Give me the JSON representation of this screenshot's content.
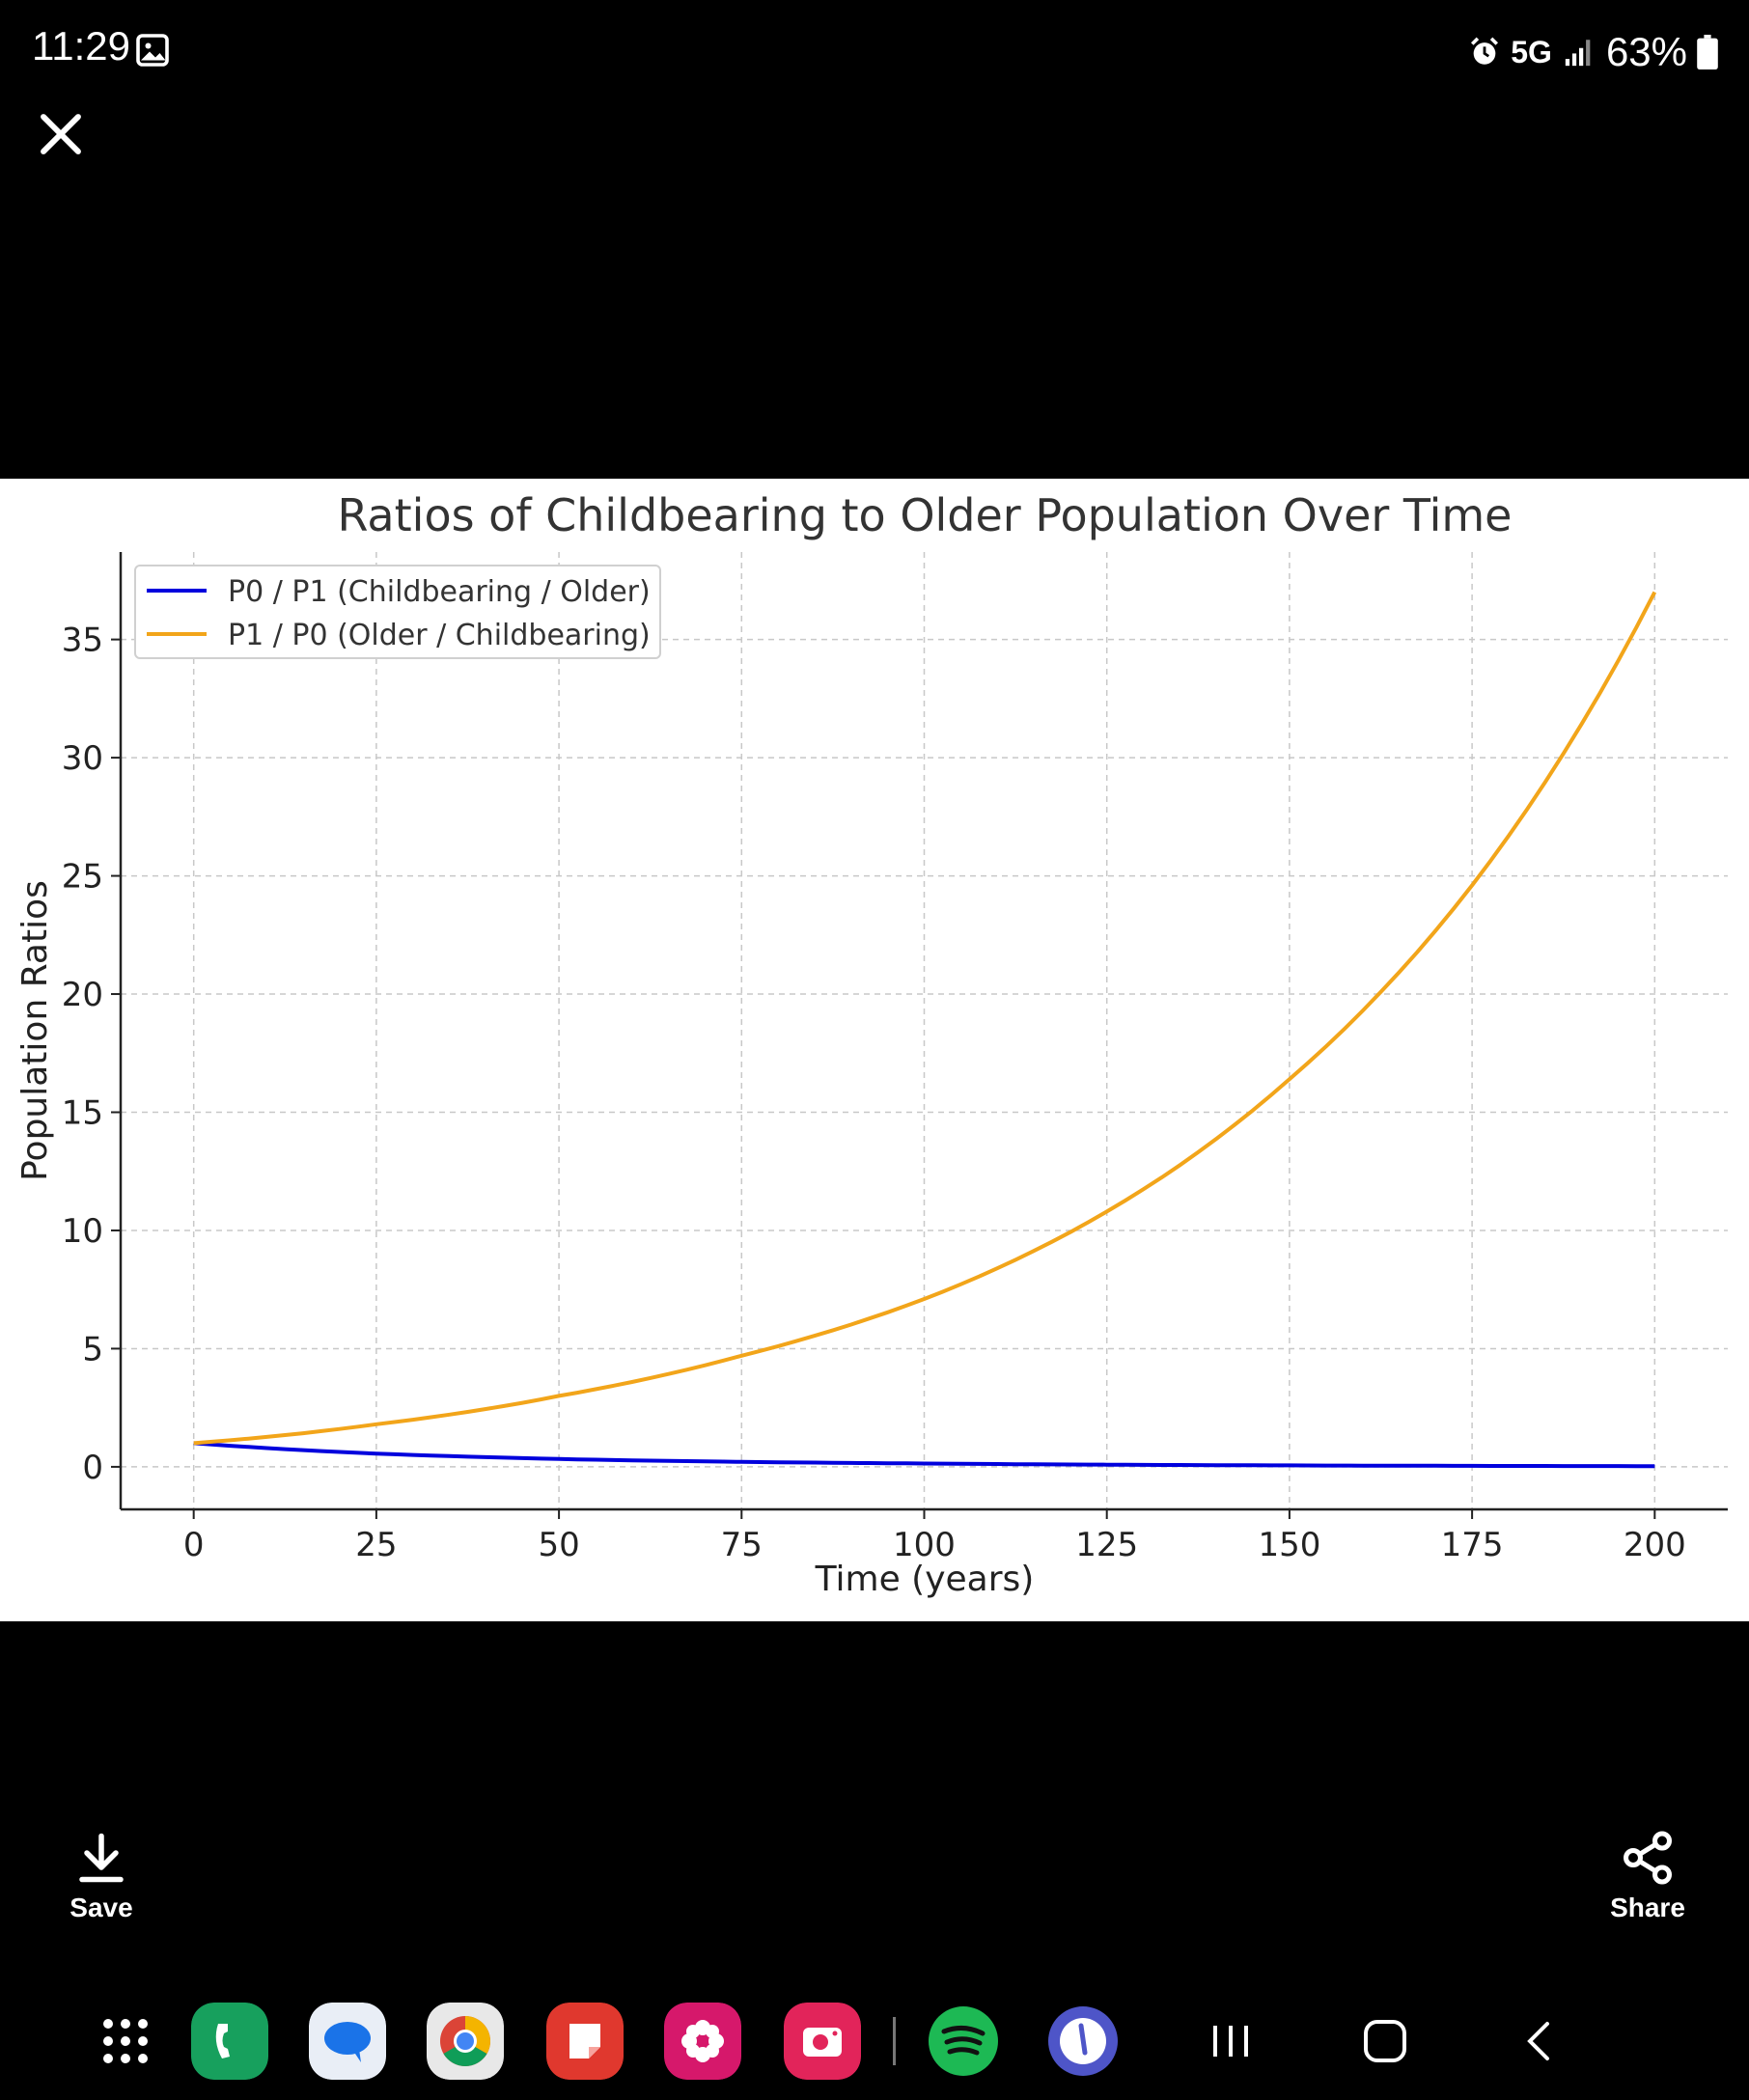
{
  "status_bar": {
    "time": "11:29",
    "network": "5G",
    "battery_text": "63%"
  },
  "icons": {
    "status_image": "image-icon",
    "alarm": "alarm-icon",
    "signal": "signal-bars-icon",
    "battery": "battery-icon",
    "close": "close-icon",
    "save": "download-icon",
    "share": "share-icon"
  },
  "actions": {
    "save_label": "Save",
    "share_label": "Share"
  },
  "dock": {
    "apps": [
      "app-drawer",
      "phone",
      "messages",
      "chrome",
      "notes",
      "bixby-flower",
      "camera",
      "spotify",
      "clock"
    ],
    "nav": [
      "recents",
      "home",
      "back"
    ]
  },
  "colors": {
    "series_blue": "#0000dd",
    "series_orange": "#f2a51a",
    "background": "#000000"
  },
  "chart_data": {
    "type": "line",
    "title": "Ratios of Childbearing to Older Population Over Time",
    "xlabel": "Time (years)",
    "ylabel": "Population Ratios",
    "xlim": [
      -10,
      210
    ],
    "ylim": [
      -1.8,
      38.7
    ],
    "xticks": [
      0,
      25,
      50,
      75,
      100,
      125,
      150,
      175,
      200
    ],
    "yticks": [
      0,
      5,
      10,
      15,
      20,
      25,
      30,
      35
    ],
    "grid": true,
    "legend_position": "top-left",
    "x": [
      0,
      25,
      50,
      75,
      100,
      125,
      150,
      175,
      200
    ],
    "series": [
      {
        "name": "P0 / P1 (Childbearing / Older)",
        "color": "#0000dd",
        "values": [
          1.0,
          0.56,
          0.33,
          0.21,
          0.14,
          0.09,
          0.06,
          0.04,
          0.03
        ]
      },
      {
        "name": "P1 / P0 (Older / Childbearing)",
        "color": "#f2a51a",
        "values": [
          1.0,
          1.8,
          3.0,
          4.7,
          7.1,
          10.8,
          16.4,
          24.6,
          37.0
        ]
      }
    ]
  }
}
